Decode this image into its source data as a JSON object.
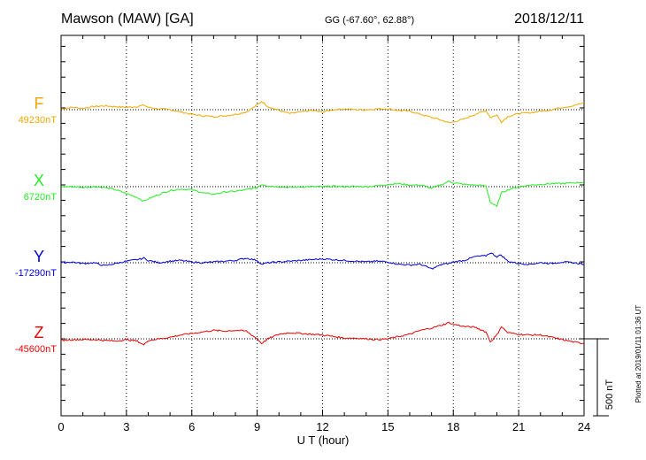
{
  "header": {
    "station": "Mawson (MAW)  [GA]",
    "coords": "GG (-67.60°,  62.88°)",
    "date": "2018/12/11"
  },
  "plotted_note": "Plotted at 2019/01/11 01:36 UT",
  "chart_data": {
    "type": "line",
    "xlabel": "U T (hour)",
    "xlim": [
      0,
      24
    ],
    "xticks": [
      0,
      3,
      6,
      9,
      12,
      15,
      18,
      21,
      24
    ],
    "xtick_labels": [
      "0",
      "3",
      "6",
      "9",
      "12",
      "15",
      "18",
      "21",
      "24"
    ],
    "scale_bar": {
      "label": "500 nT",
      "value_nT": 500
    },
    "grid": true,
    "series": [
      {
        "name": "F",
        "baseline_label": "49230nT",
        "baseline_nT": 49230,
        "color": "#f0a800",
        "x": [
          0,
          0.5,
          1,
          1.5,
          2,
          2.5,
          3,
          3.5,
          3.8,
          4,
          4.5,
          5,
          5.5,
          6,
          6.5,
          7,
          7.5,
          8,
          8.5,
          9,
          9.2,
          9.5,
          10,
          10.5,
          11,
          11.5,
          12,
          12.5,
          13,
          13.5,
          14,
          14.5,
          15,
          15.5,
          16,
          16.5,
          17,
          17.5,
          17.8,
          18,
          18.5,
          19,
          19.5,
          19.7,
          20,
          20.2,
          20.5,
          21,
          21.5,
          22,
          22.5,
          23,
          23.5,
          24
        ],
        "y": [
          49235,
          49245,
          49240,
          49250,
          49255,
          49250,
          49245,
          49250,
          49260,
          49245,
          49235,
          49230,
          49215,
          49200,
          49190,
          49185,
          49190,
          49200,
          49215,
          49260,
          49285,
          49250,
          49225,
          49205,
          49215,
          49225,
          49215,
          49230,
          49235,
          49230,
          49230,
          49235,
          49235,
          49225,
          49220,
          49200,
          49180,
          49160,
          49145,
          49150,
          49170,
          49200,
          49225,
          49180,
          49195,
          49150,
          49185,
          49205,
          49210,
          49220,
          49230,
          49245,
          49255,
          49275
        ]
      },
      {
        "name": "X",
        "baseline_label": "6720nT",
        "baseline_nT": 6720,
        "color": "#22ee22",
        "x": [
          0,
          0.5,
          1,
          1.5,
          2,
          2.5,
          3,
          3.5,
          3.8,
          4,
          4.5,
          5,
          5.5,
          6,
          6.5,
          7,
          7.5,
          8,
          8.5,
          9,
          9.2,
          9.5,
          10,
          10.5,
          11,
          11.5,
          12,
          12.5,
          13,
          13.5,
          14,
          14.5,
          15,
          15.5,
          16,
          16.5,
          17,
          17.5,
          17.8,
          18,
          18.5,
          19,
          19.5,
          19.7,
          20,
          20.2,
          20.5,
          21,
          21.5,
          22,
          22.5,
          23,
          23.5,
          24
        ],
        "y": [
          6720,
          6720,
          6715,
          6720,
          6715,
          6700,
          6675,
          6650,
          6625,
          6640,
          6670,
          6695,
          6705,
          6700,
          6680,
          6670,
          6685,
          6690,
          6700,
          6715,
          6735,
          6725,
          6720,
          6715,
          6718,
          6720,
          6720,
          6722,
          6720,
          6722,
          6720,
          6725,
          6735,
          6740,
          6730,
          6730,
          6710,
          6735,
          6755,
          6745,
          6735,
          6730,
          6725,
          6620,
          6590,
          6680,
          6700,
          6720,
          6730,
          6735,
          6740,
          6740,
          6745,
          6750
        ]
      },
      {
        "name": "Y",
        "baseline_label": "-17290nT",
        "baseline_nT": -17290,
        "color": "#0000dd",
        "x": [
          0,
          0.5,
          1,
          1.5,
          2,
          2.5,
          3,
          3.5,
          3.8,
          4,
          4.5,
          5,
          5.5,
          6,
          6.5,
          7,
          7.5,
          8,
          8.5,
          9,
          9.2,
          9.5,
          10,
          10.5,
          11,
          11.5,
          12,
          12.5,
          13,
          13.5,
          14,
          14.5,
          15,
          15.5,
          16,
          16.5,
          17,
          17.5,
          17.8,
          18,
          18.5,
          19,
          19.5,
          19.7,
          20,
          20.2,
          20.5,
          21,
          21.5,
          22,
          22.5,
          23,
          23.5,
          24
        ],
        "y": [
          -17290,
          -17285,
          -17295,
          -17290,
          -17310,
          -17295,
          -17280,
          -17270,
          -17260,
          -17275,
          -17290,
          -17280,
          -17275,
          -17285,
          -17290,
          -17285,
          -17280,
          -17275,
          -17260,
          -17275,
          -17300,
          -17290,
          -17285,
          -17280,
          -17275,
          -17270,
          -17265,
          -17270,
          -17275,
          -17280,
          -17285,
          -17280,
          -17285,
          -17300,
          -17305,
          -17300,
          -17330,
          -17300,
          -17295,
          -17285,
          -17275,
          -17250,
          -17245,
          -17225,
          -17250,
          -17240,
          -17280,
          -17295,
          -17300,
          -17290,
          -17295,
          -17285,
          -17290,
          -17300
        ]
      },
      {
        "name": "Z",
        "baseline_label": "-45600nT",
        "baseline_nT": -45600,
        "color": "#ee0000",
        "x": [
          0,
          0.5,
          1,
          1.5,
          2,
          2.5,
          3,
          3.5,
          3.8,
          4,
          4.5,
          5,
          5.5,
          6,
          6.5,
          7,
          7.5,
          8,
          8.5,
          9,
          9.2,
          9.5,
          10,
          10.5,
          11,
          11.5,
          12,
          12.5,
          13,
          13.5,
          14,
          14.5,
          15,
          15.5,
          16,
          16.5,
          17,
          17.5,
          17.8,
          18,
          18.5,
          19,
          19.5,
          19.7,
          20,
          20.2,
          20.5,
          21,
          21.5,
          22,
          22.5,
          23,
          23.5,
          24
        ],
        "y": [
          -45610,
          -45605,
          -45605,
          -45605,
          -45610,
          -45615,
          -45605,
          -45615,
          -45640,
          -45610,
          -45600,
          -45590,
          -45575,
          -45565,
          -45555,
          -45545,
          -45550,
          -45545,
          -45550,
          -45600,
          -45630,
          -45600,
          -45570,
          -45560,
          -45565,
          -45570,
          -45575,
          -45585,
          -45595,
          -45595,
          -45600,
          -45605,
          -45600,
          -45585,
          -45570,
          -45545,
          -45530,
          -45510,
          -45495,
          -45505,
          -45520,
          -45525,
          -45555,
          -45620,
          -45575,
          -45520,
          -45560,
          -45570,
          -45575,
          -45575,
          -45590,
          -45605,
          -45620,
          -45630
        ]
      }
    ]
  }
}
